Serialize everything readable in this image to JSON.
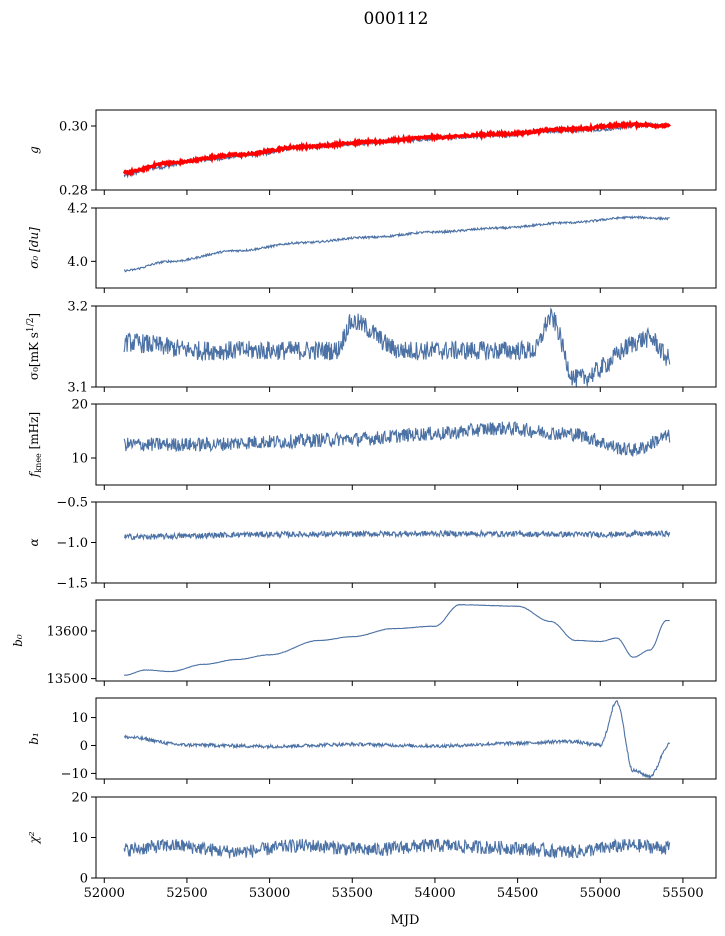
{
  "figure": {
    "title": "000112",
    "xlabel": "MJD",
    "xlim": [
      51950,
      55700
    ],
    "x_ticks": [
      52000,
      52500,
      53000,
      53500,
      54000,
      54500,
      55000,
      55500
    ],
    "series_color": "#4c72a5",
    "fit_color": "#ff0000",
    "data_start": 52120,
    "data_end": 55420
  },
  "chart_data": [
    {
      "type": "line",
      "ylabel": "g",
      "ylim": [
        0.28,
        0.305
      ],
      "y_ticks": [
        0.28,
        0.3
      ],
      "y_tick_labels": [
        "0.28",
        "0.30"
      ],
      "series": [
        {
          "x": [
            52120,
            52300,
            52600,
            52900,
            53200,
            53500,
            53800,
            54100,
            54400,
            54700,
            55000,
            55300,
            55420
          ],
          "values": [
            0.2845,
            0.287,
            0.2895,
            0.291,
            0.2935,
            0.2945,
            0.2955,
            0.2965,
            0.297,
            0.2985,
            0.299,
            0.3005,
            0.3
          ]
        },
        {
          "x": [
            52120,
            52400,
            52800,
            53200,
            53600,
            54000,
            54400,
            54800,
            55200,
            55420
          ],
          "values": [
            0.2855,
            0.2885,
            0.291,
            0.2935,
            0.295,
            0.2965,
            0.2975,
            0.299,
            0.3005,
            0.3
          ]
        }
      ]
    },
    {
      "type": "line",
      "ylabel": "σ₀ [du]",
      "ylim": [
        3.9,
        4.2
      ],
      "y_ticks": [
        4.0,
        4.2
      ],
      "y_tick_labels": [
        "4.0",
        "4.2"
      ],
      "series": [
        {
          "x": [
            52120,
            52400,
            52800,
            53200,
            53600,
            54000,
            54400,
            54800,
            55200,
            55420
          ],
          "values": [
            3.965,
            4.0,
            4.04,
            4.07,
            4.09,
            4.11,
            4.125,
            4.145,
            4.165,
            4.16
          ]
        }
      ]
    },
    {
      "type": "line",
      "ylabel": "σ₀[mK s^1/2]",
      "ylim": [
        3.1,
        3.2
      ],
      "y_ticks": [
        3.1,
        3.2
      ],
      "y_tick_labels": [
        "3.1",
        "3.2"
      ],
      "series": [
        {
          "x": [
            52120,
            52600,
            53000,
            53400,
            53500,
            53800,
            54200,
            54600,
            54700,
            54850,
            55300,
            55420
          ],
          "values": [
            3.155,
            3.145,
            3.145,
            3.145,
            3.18,
            3.145,
            3.145,
            3.145,
            3.185,
            3.11,
            3.16,
            3.135
          ]
        }
      ]
    },
    {
      "type": "line",
      "ylabel": "f_knee [mHz]",
      "ylim": [
        5,
        20
      ],
      "y_ticks": [
        10,
        20
      ],
      "y_tick_labels": [
        "10",
        "20"
      ],
      "series": [
        {
          "x": [
            52120,
            52600,
            53000,
            53500,
            54000,
            54400,
            54800,
            55200,
            55420
          ],
          "values": [
            12.5,
            12.5,
            13.0,
            13.5,
            14.5,
            15.5,
            14.5,
            11.5,
            14.0
          ]
        }
      ]
    },
    {
      "type": "line",
      "ylabel": "α",
      "ylim": [
        -1.5,
        -0.5
      ],
      "y_ticks": [
        -1.5,
        -1.0,
        -0.5
      ],
      "y_tick_labels": [
        "−1.5",
        "−1.0",
        "−0.5"
      ],
      "series": [
        {
          "x": [
            52120,
            53000,
            54000,
            55000,
            55420
          ],
          "values": [
            -0.93,
            -0.9,
            -0.89,
            -0.9,
            -0.89
          ]
        }
      ]
    },
    {
      "type": "line",
      "ylabel": "b₀",
      "ylim": [
        13495,
        13665
      ],
      "y_ticks": [
        13500,
        13600
      ],
      "y_tick_labels": [
        "13500",
        "13600"
      ],
      "series": [
        {
          "x": [
            52120,
            52250,
            52400,
            52600,
            52800,
            53000,
            53300,
            53500,
            53750,
            54000,
            54150,
            54500,
            54700,
            54850,
            55000,
            55100,
            55200,
            55300,
            55400
          ],
          "values": [
            13507,
            13518,
            13515,
            13530,
            13540,
            13550,
            13580,
            13588,
            13605,
            13610,
            13655,
            13652,
            13620,
            13580,
            13578,
            13585,
            13545,
            13560,
            13622
          ]
        }
      ]
    },
    {
      "type": "line",
      "ylabel": "b₁",
      "ylim": [
        -12,
        17
      ],
      "y_ticks": [
        -10,
        0,
        10
      ],
      "y_tick_labels": [
        "−10",
        "0",
        "10"
      ],
      "series": [
        {
          "x": [
            52120,
            52500,
            53000,
            53500,
            54000,
            54500,
            54800,
            55000,
            55100,
            55200,
            55300,
            55420
          ],
          "values": [
            3.0,
            0.2,
            -0.3,
            0.4,
            -0.2,
            0.8,
            1.5,
            0.2,
            15.5,
            -9.0,
            -11.0,
            0.5
          ]
        }
      ]
    },
    {
      "type": "line",
      "ylabel": "χ²",
      "ylim": [
        0,
        20
      ],
      "y_ticks": [
        0,
        10,
        20
      ],
      "y_tick_labels": [
        "0",
        "10",
        "20"
      ],
      "series": [
        {
          "x": [
            52120,
            52400,
            52800,
            53200,
            53600,
            54000,
            54400,
            54800,
            55200,
            55400
          ],
          "values": [
            7.0,
            8.0,
            6.5,
            8.0,
            7.0,
            8.0,
            7.5,
            6.5,
            8.0,
            7.5
          ]
        }
      ]
    }
  ]
}
